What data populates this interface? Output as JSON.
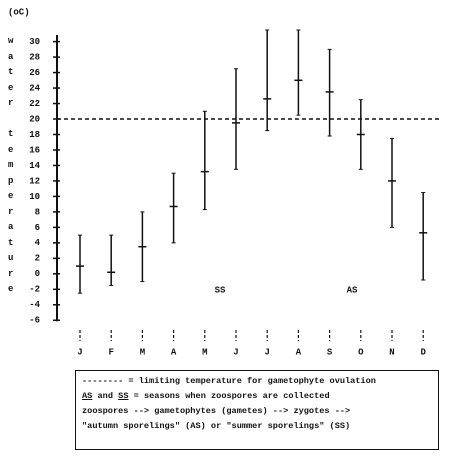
{
  "chart_data": {
    "type": "errorbar",
    "unit_label": "(oC)",
    "y_label_words": [
      "water",
      "temperature"
    ],
    "categories": [
      "J",
      "F",
      "M",
      "A",
      "M",
      "J",
      "J",
      "A",
      "S",
      "O",
      "N",
      "D"
    ],
    "values": [
      1,
      0.2,
      3.5,
      8.7,
      13.2,
      19.5,
      22.6,
      25,
      23.5,
      18,
      12,
      5.3
    ],
    "min": [
      -2.5,
      -1.5,
      -1,
      4,
      8.3,
      13.5,
      18.5,
      20.5,
      17.8,
      13.5,
      6,
      -0.8
    ],
    "max": [
      5,
      5,
      8,
      13,
      21,
      26.5,
      31.5,
      31.5,
      29,
      22.5,
      17.5,
      10.5
    ],
    "color": "#111111",
    "ylim": [
      -7,
      31.5
    ],
    "yticks": [
      -6,
      -4,
      -2,
      0,
      2,
      4,
      6,
      8,
      10,
      12,
      14,
      16,
      18,
      20,
      22,
      24,
      26,
      28,
      30
    ],
    "reference_line": 20,
    "annotations": [
      "SS",
      "AS"
    ],
    "legend_lines": [
      "-------- = limiting temperature for gametophyte ovulation",
      "= seasons when zoospores are collected",
      "zoospores --> gametophytes (gametes) --> zygotes -->",
      "\"autumn sporelings\" (AS) or \"summer sporelings\" (SS)"
    ],
    "legend_abbrevs": [
      "AS",
      "and",
      "SS"
    ]
  }
}
